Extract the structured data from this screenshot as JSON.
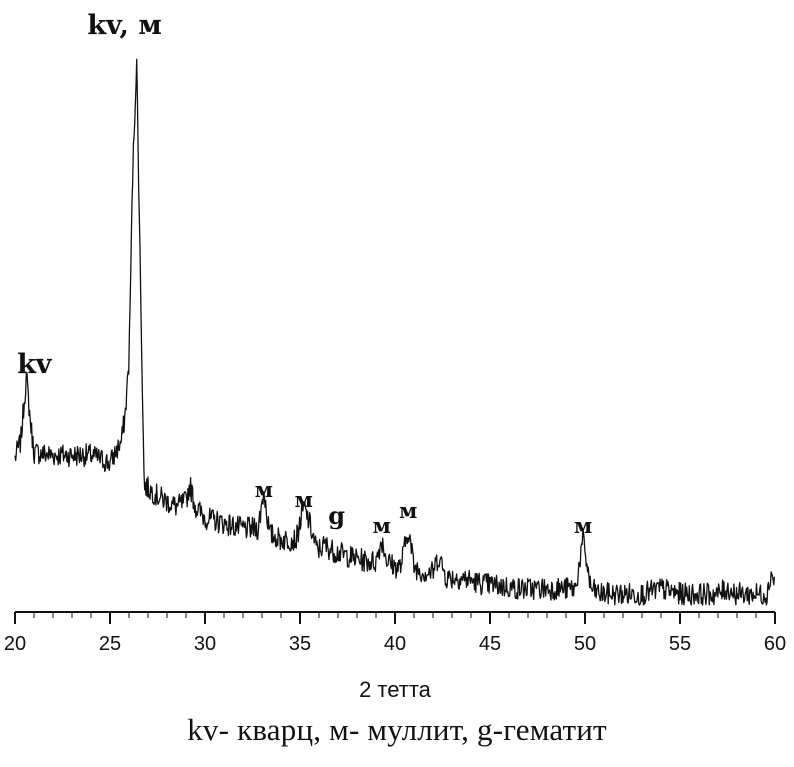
{
  "chart_data": {
    "type": "line",
    "xlabel": "2 тетта",
    "xlim": [
      20,
      60
    ],
    "x_ticks": [
      20,
      25,
      30,
      35,
      40,
      45,
      50,
      55,
      60
    ],
    "x_tick_labels": [
      "20",
      "25",
      "30",
      "35",
      "40",
      "45",
      "50",
      "55",
      "60"
    ],
    "y_axis_visible": false,
    "series": [
      {
        "x": [
          20,
          20.3,
          20.5,
          20.6,
          20.8,
          21,
          22,
          23,
          24,
          25,
          25.6,
          25.8,
          26,
          26.2,
          26.4,
          26.6,
          26.8,
          27.5,
          28.5,
          29,
          29.2,
          29.5,
          30,
          31,
          32,
          32.8,
          33.1,
          33.4,
          34,
          34.8,
          35.2,
          35.5,
          35.9,
          36.3,
          36.7,
          37.5,
          38.5,
          39,
          39.3,
          39.6,
          40,
          40.3,
          40.7,
          41,
          41.5,
          42,
          42.3,
          42.7,
          43.5,
          44.5,
          45.5,
          46.5,
          47.5,
          48.5,
          49.5,
          49.9,
          50.3,
          50.8,
          52,
          53,
          54,
          55,
          56,
          57,
          57.5,
          58,
          59,
          59.6,
          59.8,
          60
        ],
        "y": [
          27,
          30,
          38,
          42,
          34,
          28,
          27.5,
          27.5,
          27.5,
          26,
          30,
          35,
          45,
          80,
          100,
          60,
          22,
          20,
          18,
          19,
          22,
          18,
          16,
          15,
          14,
          14,
          21,
          13,
          12,
          12,
          18,
          15,
          10,
          11,
          10,
          9,
          8,
          8,
          12,
          8,
          7,
          7,
          14,
          7,
          6,
          6,
          9,
          5,
          5,
          4,
          3.5,
          3,
          3,
          3,
          3,
          12,
          3,
          2,
          2,
          2,
          3,
          2,
          2,
          2,
          3,
          2,
          2,
          2,
          6,
          4
        ]
      }
    ],
    "annotations": [
      {
        "label": "kv, м",
        "x": 26.4
      },
      {
        "label": "kv",
        "x": 20.6
      },
      {
        "label": "м",
        "x": 33.1
      },
      {
        "label": "м",
        "x": 35.2
      },
      {
        "label": "g",
        "x": 36.3
      },
      {
        "label": "м",
        "x": 39.3
      },
      {
        "label": "м",
        "x": 40.7
      },
      {
        "label": "м",
        "x": 49.9
      }
    ]
  },
  "caption": "kv- кварц, м- муллит, g-гематит"
}
